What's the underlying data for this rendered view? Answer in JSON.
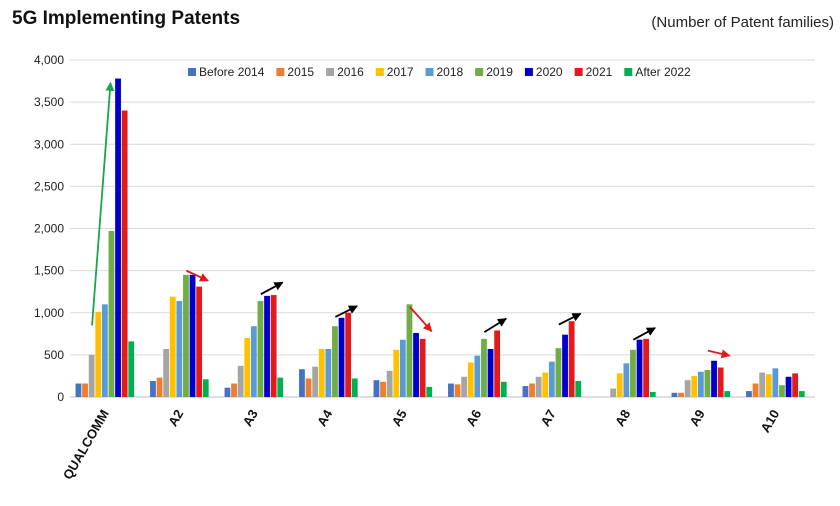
{
  "chart_data": {
    "type": "bar",
    "title": "5G Implementing Patents",
    "subtitle": "(Number of Patent families)",
    "xlabel": "",
    "ylabel": "",
    "ylim": [
      0,
      4000
    ],
    "yticks": [
      "0",
      "500",
      "1,000",
      "1,500",
      "2,000",
      "2,500",
      "3,000",
      "3,500",
      "4,000"
    ],
    "grid": true,
    "legend_position": "top",
    "categories": [
      "QUALCOMM",
      "A2",
      "A3",
      "A4",
      "A5",
      "A6",
      "A7",
      "A8",
      "A9",
      "A10"
    ],
    "series": [
      {
        "name": "Before 2014",
        "color": "#4472C4",
        "values": [
          160,
          190,
          110,
          330,
          200,
          160,
          130,
          0,
          50,
          70
        ]
      },
      {
        "name": "2015",
        "color": "#ED7D31",
        "values": [
          160,
          230,
          160,
          220,
          180,
          150,
          160,
          0,
          50,
          160
        ]
      },
      {
        "name": "2016",
        "color": "#A5A5A5",
        "values": [
          500,
          570,
          370,
          360,
          310,
          240,
          240,
          100,
          200,
          290
        ]
      },
      {
        "name": "2017",
        "color": "#FFC000",
        "values": [
          1010,
          1190,
          700,
          570,
          560,
          410,
          290,
          280,
          250,
          270
        ]
      },
      {
        "name": "2018",
        "color": "#5B9BD5",
        "values": [
          1100,
          1140,
          840,
          570,
          680,
          490,
          420,
          400,
          300,
          340
        ]
      },
      {
        "name": "2019",
        "color": "#70AD47",
        "values": [
          1970,
          1450,
          1140,
          840,
          1100,
          690,
          580,
          560,
          320,
          140
        ]
      },
      {
        "name": "2020",
        "color": "#0000CC",
        "values": [
          3780,
          1450,
          1200,
          940,
          760,
          570,
          740,
          680,
          430,
          240
        ]
      },
      {
        "name": "2021",
        "color": "#E31A1C",
        "values": [
          3400,
          1310,
          1210,
          1000,
          690,
          790,
          900,
          690,
          350,
          280
        ]
      },
      {
        "name": "After 2022",
        "color": "#00B050",
        "values": [
          660,
          210,
          230,
          220,
          120,
          180,
          190,
          60,
          70,
          70
        ]
      }
    ],
    "annotations": [
      {
        "category": "QUALCOMM",
        "from_value": 850,
        "to_value": 3730,
        "color": "#1aa64a",
        "type": "arrow"
      },
      {
        "category": "A2",
        "from_value": 1500,
        "to_value": 1380,
        "color": "#E31A1C",
        "type": "arrow"
      },
      {
        "category": "A3",
        "from_value": 1220,
        "to_value": 1360,
        "color": "#000000",
        "type": "arrow"
      },
      {
        "category": "A4",
        "from_value": 950,
        "to_value": 1080,
        "color": "#000000",
        "type": "arrow"
      },
      {
        "category": "A5",
        "from_value": 1070,
        "to_value": 780,
        "color": "#E31A1C",
        "type": "arrow"
      },
      {
        "category": "A6",
        "from_value": 770,
        "to_value": 930,
        "color": "#000000",
        "type": "arrow"
      },
      {
        "category": "A7",
        "from_value": 860,
        "to_value": 990,
        "color": "#000000",
        "type": "arrow"
      },
      {
        "category": "A8",
        "from_value": 680,
        "to_value": 820,
        "color": "#000000",
        "type": "arrow"
      },
      {
        "category": "A9",
        "from_value": 550,
        "to_value": 490,
        "color": "#E31A1C",
        "type": "arrow"
      }
    ]
  }
}
